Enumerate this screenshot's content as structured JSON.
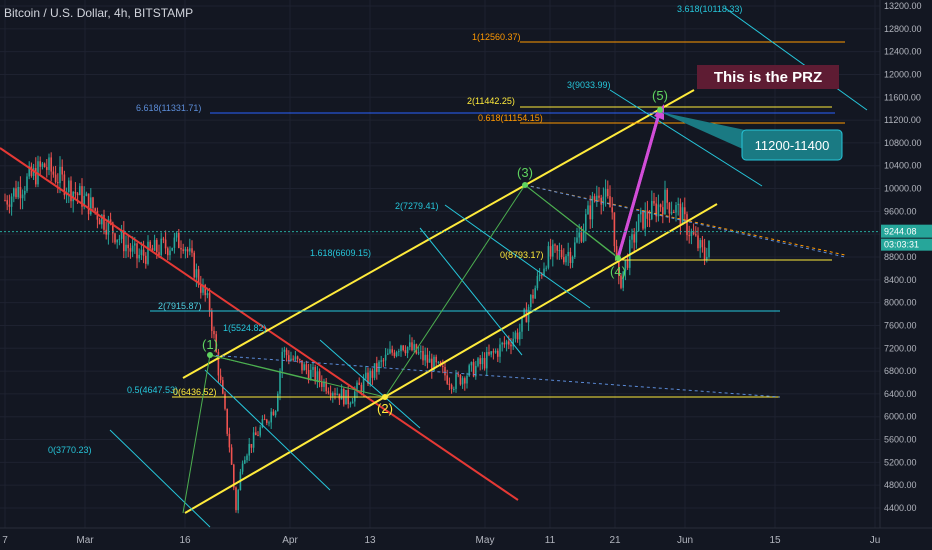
{
  "header": {
    "symbol_title": "Bitcoin / U.S. Dollar, 4h, BITSTAMP"
  },
  "price_axis": {
    "ticks": [
      "13200.00",
      "12800.00",
      "12400.00",
      "12000.00",
      "11600.00",
      "11200.00",
      "10800.00",
      "10400.00",
      "10000.00",
      "9600.00",
      "9200.00",
      "8800.00",
      "8400.00",
      "8000.00",
      "7600.00",
      "7200.00",
      "6800.00",
      "6400.00",
      "6000.00",
      "5600.00",
      "5200.00",
      "4800.00",
      "4400.00"
    ],
    "current_price": "9244.08",
    "countdown": "03:03:31",
    "price_badge_color": "#26a69a"
  },
  "time_axis": {
    "ticks": [
      "7",
      "Mar",
      "16",
      "Apr",
      "13",
      "May",
      "11",
      "21",
      "Jun",
      "15",
      "Ju"
    ]
  },
  "waves": [
    {
      "label": "(1)",
      "price": 7150,
      "color": "#5fd35f"
    },
    {
      "label": "(2)",
      "price": 6380,
      "color": "#ffeb3b"
    },
    {
      "label": "(3)",
      "price": 10100,
      "color": "#5fd35f"
    },
    {
      "label": "(4)",
      "price": 8800,
      "color": "#5fd35f"
    },
    {
      "label": "(5)",
      "price": 11400,
      "color": "#5fd35f"
    }
  ],
  "fib_labels": {
    "cyan": [
      "0(3770.23)",
      "0.5(4647.53)",
      "1(5524.82)",
      "1.618(6609.15)",
      "2(7279.41)",
      "3(9033.99)",
      "3.618(10118.33)"
    ],
    "yellow": [
      "0(6436.52)",
      "0(8793.17)",
      "2(11442.25)"
    ],
    "teal": [
      "2(7915.87)"
    ],
    "blue": [
      "6.618(11331.71)"
    ],
    "orange": [
      "1(12560.37)",
      "0.618(11154.15)"
    ]
  },
  "annotations": {
    "prz_label": "This is the PRZ",
    "target_zone": "11200-11400"
  },
  "colors": {
    "background": "#131722",
    "up": "#26a69a",
    "down": "#ef5350",
    "channel": "#ffeb3b",
    "red_trend": "#e53935",
    "projection": "#d24dd8",
    "cyan": "#26c6da",
    "orange": "#ff9800",
    "blue": "#2962ff"
  },
  "chart_data": {
    "type": "candlestick",
    "title": "Bitcoin / U.S. Dollar, 4h, BITSTAMP",
    "x_ticks": [
      "7",
      "Mar",
      "16",
      "Apr",
      "13",
      "May",
      "11",
      "21",
      "Jun",
      "15",
      "Ju"
    ],
    "y_range": [
      4200,
      13400
    ],
    "last_price": 9244.08,
    "price_path": [
      {
        "date": "2020-02-07",
        "price": 9800
      },
      {
        "date": "2020-02-13",
        "price": 10400
      },
      {
        "date": "2020-02-20",
        "price": 9700
      },
      {
        "date": "2020-02-27",
        "price": 8800
      },
      {
        "date": "2020-03-05",
        "price": 9100
      },
      {
        "date": "2020-03-09",
        "price": 7900
      },
      {
        "date": "2020-03-12",
        "price": 5500
      },
      {
        "date": "2020-03-13",
        "price": 4400
      },
      {
        "date": "2020-03-14",
        "price": 5300
      },
      {
        "date": "2020-03-19",
        "price": 6200
      },
      {
        "date": "2020-03-20",
        "price": 7150
      },
      {
        "date": "2020-03-25",
        "price": 6700
      },
      {
        "date": "2020-03-30",
        "price": 6300
      },
      {
        "date": "2020-04-07",
        "price": 7300
      },
      {
        "date": "2020-04-12",
        "price": 6900
      },
      {
        "date": "2020-04-15",
        "price": 6600
      },
      {
        "date": "2020-04-20",
        "price": 7000
      },
      {
        "date": "2020-04-25",
        "price": 7500
      },
      {
        "date": "2020-04-29",
        "price": 8800
      },
      {
        "date": "2020-05-03",
        "price": 8900
      },
      {
        "date": "2020-05-07",
        "price": 10000
      },
      {
        "date": "2020-05-09",
        "price": 9600
      },
      {
        "date": "2020-05-10",
        "price": 8300
      },
      {
        "date": "2020-05-13",
        "price": 9400
      },
      {
        "date": "2020-05-17",
        "price": 9800
      },
      {
        "date": "2020-05-19",
        "price": 9600
      },
      {
        "date": "2020-05-23",
        "price": 8800
      },
      {
        "date": "2020-05-24",
        "price": 9244
      }
    ]
  }
}
